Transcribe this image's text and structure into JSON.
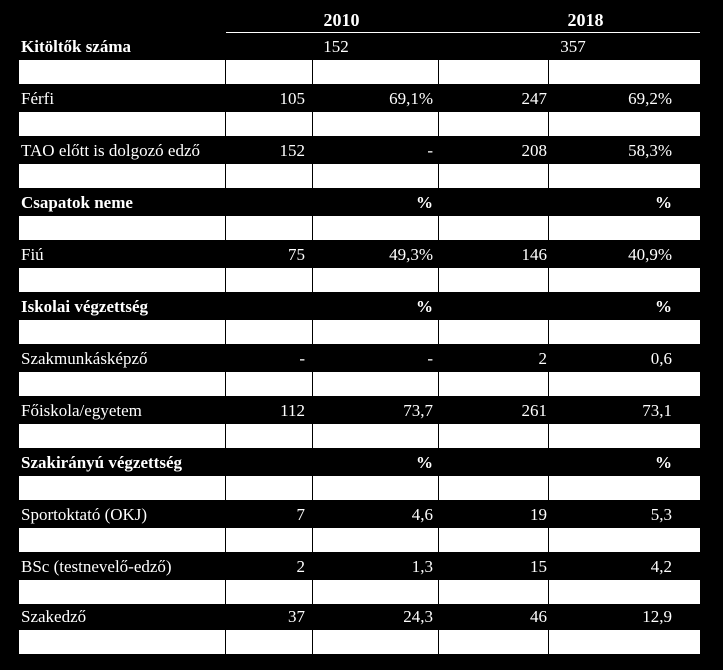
{
  "header": {
    "year1": "2010",
    "year2": "2018"
  },
  "respondents": {
    "label": "Kitöltők száma",
    "v2010": "152",
    "v2018": "357"
  },
  "rows": [
    {
      "label": "Férfi",
      "n2010": "105",
      "p2010": "69,1%",
      "n2018": "247",
      "p2018": "69,2%"
    },
    {
      "label": "TAO előtt is dolgozó edző",
      "n2010": "152",
      "p2010": "-",
      "n2018": "208",
      "p2018": "58,3%"
    }
  ],
  "sections": {
    "teams": {
      "label": "Csapatok neme",
      "pct1": "%",
      "pct2": "%"
    },
    "school": {
      "label": "Iskolai végzettség",
      "pct1": "%",
      "pct2": "%"
    },
    "special": {
      "label": "Szakirányú végzettség",
      "pct1": "%",
      "pct2": "%"
    }
  },
  "teams_rows": [
    {
      "label": "Fiú",
      "n2010": "75",
      "p2010": "49,3%",
      "n2018": "146",
      "p2018": "40,9%"
    }
  ],
  "school_rows": [
    {
      "label": "Szakmunkásképző",
      "n2010": "-",
      "p2010": "-",
      "n2018": "2",
      "p2018": "0,6"
    },
    {
      "label": "Főiskola/egyetem",
      "n2010": "112",
      "p2010": "73,7",
      "n2018": "261",
      "p2018": "73,1"
    }
  ],
  "special_rows": [
    {
      "label": "Sportoktató (OKJ)",
      "n2010": "7",
      "p2010": "4,6",
      "n2018": "19",
      "p2018": "5,3"
    },
    {
      "label": "BSc (testnevelő-edző)",
      "n2010": "2",
      "p2010": "1,3",
      "n2018": "15",
      "p2018": "4,2"
    },
    {
      "label": "Szakedző",
      "n2010": "37",
      "p2010": "24,3",
      "n2018": "46",
      "p2018": "12,9"
    }
  ]
}
